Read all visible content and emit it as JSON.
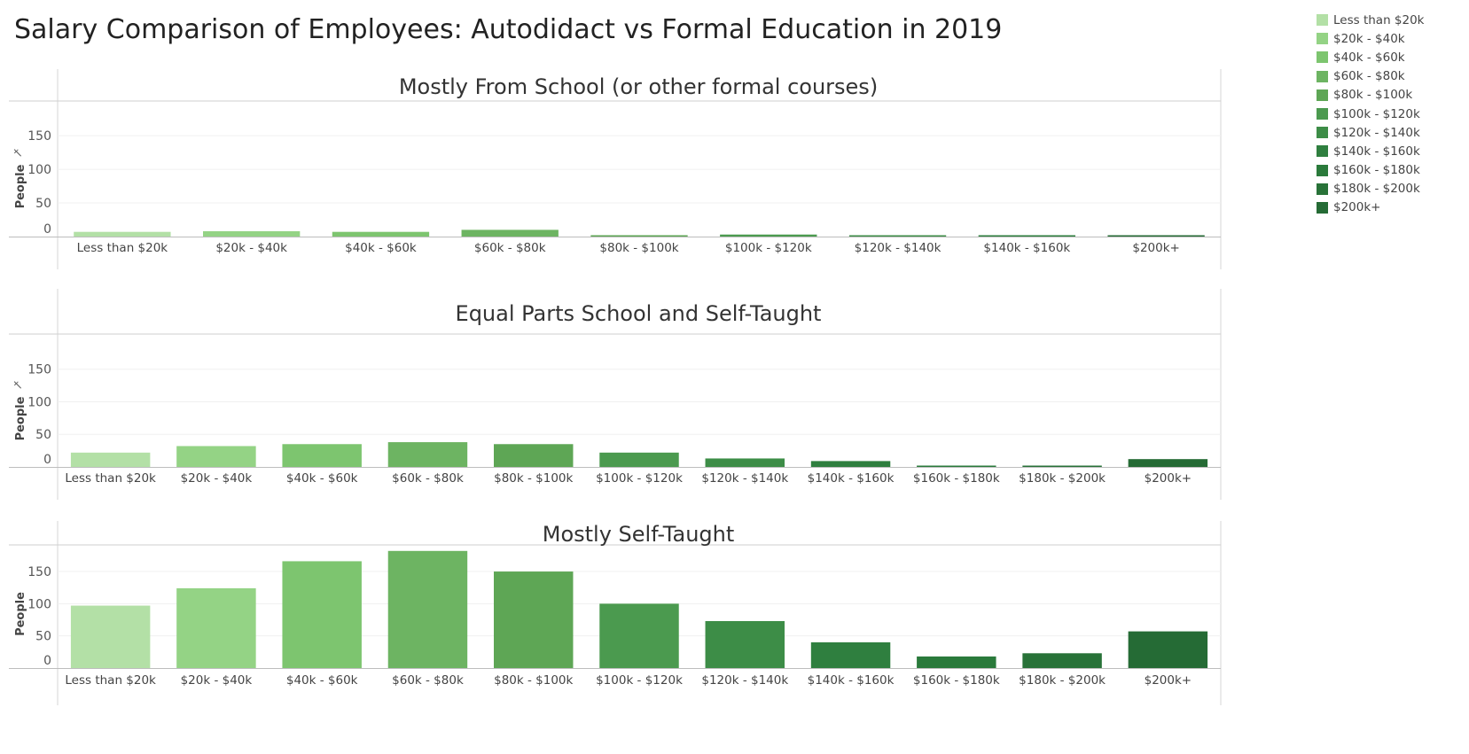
{
  "title": "Salary Comparison of Employees: Autodidact vs Formal Education in 2019",
  "legend": {
    "items": [
      {
        "label": "Less than $20k",
        "color": "#b3e0a6"
      },
      {
        "label": "$20k - $40k",
        "color": "#94d385"
      },
      {
        "label": "$40k - $60k",
        "color": "#7dc56f"
      },
      {
        "label": "$60k - $80k",
        "color": "#6db462"
      },
      {
        "label": "$80k - $100k",
        "color": "#5ea655"
      },
      {
        "label": "$100k - $120k",
        "color": "#4b9a4f"
      },
      {
        "label": "$120k - $140k",
        "color": "#3d8d47"
      },
      {
        "label": "$140k - $160k",
        "color": "#2f7f3f"
      },
      {
        "label": "$160k - $180k",
        "color": "#2a7a3b"
      },
      {
        "label": "$180k - $200k",
        "color": "#287238"
      },
      {
        "label": "$200k+",
        "color": "#256b35"
      }
    ]
  },
  "chart_data": [
    {
      "type": "bar",
      "title": "Mostly From School (or other formal courses)",
      "ylabel": "People",
      "yticks": [
        0,
        50,
        100,
        150
      ],
      "ylim": [
        0,
        170
      ],
      "categories": [
        "Less than $20k",
        "$20k - $40k",
        "$40k - $60k",
        "$60k - $80k",
        "$80k - $100k",
        "$100k - $120k",
        "$120k - $140k",
        "$140k - $160k",
        "$200k+"
      ],
      "values": [
        7,
        8,
        7,
        10,
        2,
        3,
        1,
        2,
        1
      ],
      "colors": [
        "#b3e0a6",
        "#94d385",
        "#7dc56f",
        "#6db462",
        "#5ea655",
        "#4b9a4f",
        "#3d8d47",
        "#2f7f3f",
        "#256b35"
      ]
    },
    {
      "type": "bar",
      "title": "Equal Parts School and Self-Taught",
      "ylabel": "People",
      "yticks": [
        0,
        50,
        100,
        150
      ],
      "ylim": [
        0,
        170
      ],
      "categories": [
        "Less than $20k",
        "$20k - $40k",
        "$40k - $60k",
        "$60k - $80k",
        "$80k - $100k",
        "$100k - $120k",
        "$120k - $140k",
        "$140k - $160k",
        "$160k - $180k",
        "$180k - $200k",
        "$200k+"
      ],
      "values": [
        22,
        32,
        35,
        38,
        35,
        22,
        13,
        9,
        1,
        2,
        12
      ],
      "colors": [
        "#b3e0a6",
        "#94d385",
        "#7dc56f",
        "#6db462",
        "#5ea655",
        "#4b9a4f",
        "#3d8d47",
        "#2f7f3f",
        "#2a7a3b",
        "#287238",
        "#256b35"
      ]
    },
    {
      "type": "bar",
      "title": "Mostly Self-Taught",
      "ylabel": "People",
      "yticks": [
        0,
        50,
        100,
        150
      ],
      "ylim": [
        0,
        190
      ],
      "categories": [
        "Less than $20k",
        "$20k - $40k",
        "$40k - $60k",
        "$60k - $80k",
        "$80k - $100k",
        "$100k - $120k",
        "$120k - $140k",
        "$140k - $160k",
        "$160k - $180k",
        "$180k - $200k",
        "$200k+"
      ],
      "values": [
        97,
        124,
        166,
        182,
        150,
        100,
        73,
        40,
        18,
        23,
        57
      ],
      "colors": [
        "#b3e0a6",
        "#94d385",
        "#7dc56f",
        "#6db462",
        "#5ea655",
        "#4b9a4f",
        "#3d8d47",
        "#2f7f3f",
        "#2a7a3b",
        "#287238",
        "#256b35"
      ]
    }
  ]
}
